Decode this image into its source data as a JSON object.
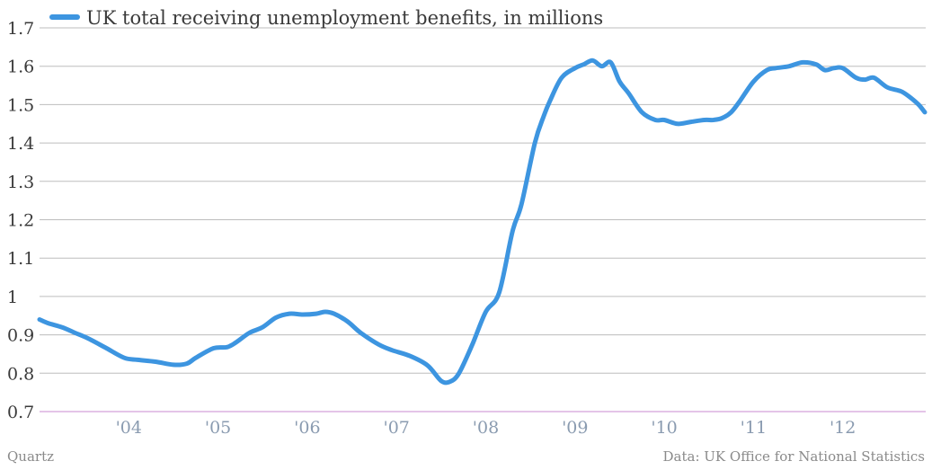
{
  "chart_data": {
    "type": "line",
    "series": [
      {
        "name": "UK total receiving unemployment benefits, in millions",
        "color": "#3d95e0",
        "x": [
          2003.0,
          2003.1,
          2003.25,
          2003.4,
          2003.55,
          2003.75,
          2003.95,
          2004.1,
          2004.3,
          2004.5,
          2004.65,
          2004.75,
          2004.95,
          2005.1,
          2005.2,
          2005.35,
          2005.5,
          2005.65,
          2005.8,
          2005.95,
          2006.1,
          2006.2,
          2006.3,
          2006.45,
          2006.6,
          2006.8,
          2006.95,
          2007.15,
          2007.35,
          2007.5,
          2007.6,
          2007.7,
          2007.85,
          2008.0,
          2008.15,
          2008.3,
          2008.4,
          2008.55,
          2008.65,
          2008.72,
          2008.85,
          2009.0,
          2009.1,
          2009.2,
          2009.3,
          2009.4,
          2009.5,
          2009.6,
          2009.75,
          2009.9,
          2010.0,
          2010.15,
          2010.3,
          2010.45,
          2010.55,
          2010.65,
          2010.75,
          2010.85,
          2011.0,
          2011.15,
          2011.25,
          2011.4,
          2011.55,
          2011.7,
          2011.8,
          2011.9,
          2012.0,
          2012.15,
          2012.25,
          2012.35,
          2012.5,
          2012.65,
          2012.75,
          2012.85,
          2012.92
        ],
        "values": [
          0.94,
          0.93,
          0.92,
          0.905,
          0.89,
          0.865,
          0.84,
          0.835,
          0.83,
          0.822,
          0.825,
          0.84,
          0.865,
          0.868,
          0.88,
          0.905,
          0.92,
          0.945,
          0.955,
          0.953,
          0.955,
          0.96,
          0.955,
          0.935,
          0.905,
          0.875,
          0.86,
          0.845,
          0.82,
          0.78,
          0.778,
          0.8,
          0.875,
          0.96,
          1.01,
          1.17,
          1.24,
          1.4,
          1.47,
          1.51,
          1.57,
          1.595,
          1.605,
          1.615,
          1.6,
          1.61,
          1.56,
          1.53,
          1.48,
          1.46,
          1.46,
          1.45,
          1.455,
          1.46,
          1.46,
          1.465,
          1.48,
          1.51,
          1.56,
          1.59,
          1.595,
          1.6,
          1.61,
          1.605,
          1.59,
          1.595,
          1.595,
          1.57,
          1.565,
          1.57,
          1.545,
          1.535,
          1.52,
          1.5,
          1.48
        ]
      }
    ],
    "x_ticks": [
      "'04",
      "'05",
      "'06",
      "'07",
      "'08",
      "'09",
      "'10",
      "'11",
      "'12"
    ],
    "x_tick_values": [
      2004,
      2005,
      2006,
      2007,
      2008,
      2009,
      2010,
      2011,
      2012
    ],
    "xlim": [
      2003.0,
      2012.93
    ],
    "ylim": [
      0.7,
      1.7
    ],
    "y_ticks": [
      "0.7",
      "0.8",
      "0.9",
      "1",
      "1.1",
      "1.2",
      "1.3",
      "1.4",
      "1.5",
      "1.6",
      "1.7"
    ],
    "y_tick_values": [
      0.7,
      0.8,
      0.9,
      1.0,
      1.1,
      1.2,
      1.3,
      1.4,
      1.5,
      1.6,
      1.7
    ],
    "grid": true,
    "legend_position": "top-left"
  },
  "footer": {
    "left": "Quartz",
    "right": "Data: UK Office for National Statistics"
  }
}
